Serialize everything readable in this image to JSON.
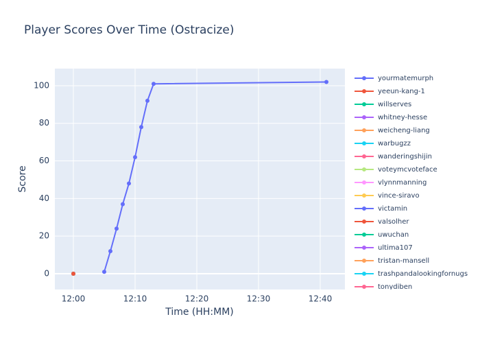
{
  "chart_data": {
    "type": "line",
    "title": "Player Scores Over Time (Ostracize)",
    "x_label": "Time (HH:MM)",
    "y_label": "Score",
    "xlim": [
      "11:57",
      "12:44"
    ],
    "xticks": [
      "12:00",
      "12:10",
      "12:20",
      "12:30",
      "12:40"
    ],
    "ylim": [
      -8.4,
      109.1
    ],
    "yticks": [
      0,
      20,
      40,
      60,
      80,
      100
    ],
    "grid": true,
    "series": [
      {
        "name": "yourmatemurph",
        "color": "#636efa",
        "x": [
          "12:05",
          "12:06",
          "12:07",
          "12:08",
          "12:09",
          "12:10",
          "12:11",
          "12:12",
          "12:13",
          "12:41"
        ],
        "values": [
          1,
          12,
          24,
          37,
          48,
          62,
          78,
          92,
          101,
          102
        ]
      },
      {
        "name": "yeeun-kang-1",
        "color": "#EF553B",
        "x": [
          "12:00"
        ],
        "values": [
          0
        ]
      },
      {
        "name": "willserves",
        "color": "#00cc96",
        "x": [
          "12:00"
        ],
        "values": [
          0
        ]
      },
      {
        "name": "whitney-hesse",
        "color": "#ab63fa",
        "x": [
          "12:00"
        ],
        "values": [
          0
        ]
      },
      {
        "name": "weicheng-liang",
        "color": "#FFA15A",
        "x": [
          "12:00"
        ],
        "values": [
          0
        ]
      },
      {
        "name": "warbugzz",
        "color": "#19d3f3",
        "x": [
          "12:00"
        ],
        "values": [
          0
        ]
      },
      {
        "name": "wanderingshijin",
        "color": "#FF6692",
        "x": [
          "12:00"
        ],
        "values": [
          0
        ]
      },
      {
        "name": "voteymcvoteface",
        "color": "#B6E880",
        "x": [
          "12:00"
        ],
        "values": [
          0
        ]
      },
      {
        "name": "vlynnmanning",
        "color": "#FF97FF",
        "x": [
          "12:00"
        ],
        "values": [
          0
        ]
      },
      {
        "name": "vince-siravo",
        "color": "#FECB52",
        "x": [
          "12:00"
        ],
        "values": [
          0
        ]
      },
      {
        "name": "victamin",
        "color": "#636efa",
        "x": [
          "12:00"
        ],
        "values": [
          0
        ]
      },
      {
        "name": "valsolher",
        "color": "#EF553B",
        "x": [
          "12:00"
        ],
        "values": [
          0
        ]
      },
      {
        "name": "uwuchan",
        "color": "#00cc96",
        "x": [
          "12:00"
        ],
        "values": [
          0
        ]
      },
      {
        "name": "ultima107",
        "color": "#ab63fa",
        "x": [
          "12:00"
        ],
        "values": [
          0
        ]
      },
      {
        "name": "tristan-mansell",
        "color": "#FFA15A",
        "x": [
          "12:00"
        ],
        "values": [
          0
        ]
      },
      {
        "name": "trashpandalookingfornugs",
        "color": "#19d3f3",
        "x": [
          "12:00"
        ],
        "values": [
          0
        ]
      },
      {
        "name": "tonydiben",
        "color": "#FF6692",
        "x": [
          "12:00"
        ],
        "values": [
          0
        ]
      }
    ]
  }
}
